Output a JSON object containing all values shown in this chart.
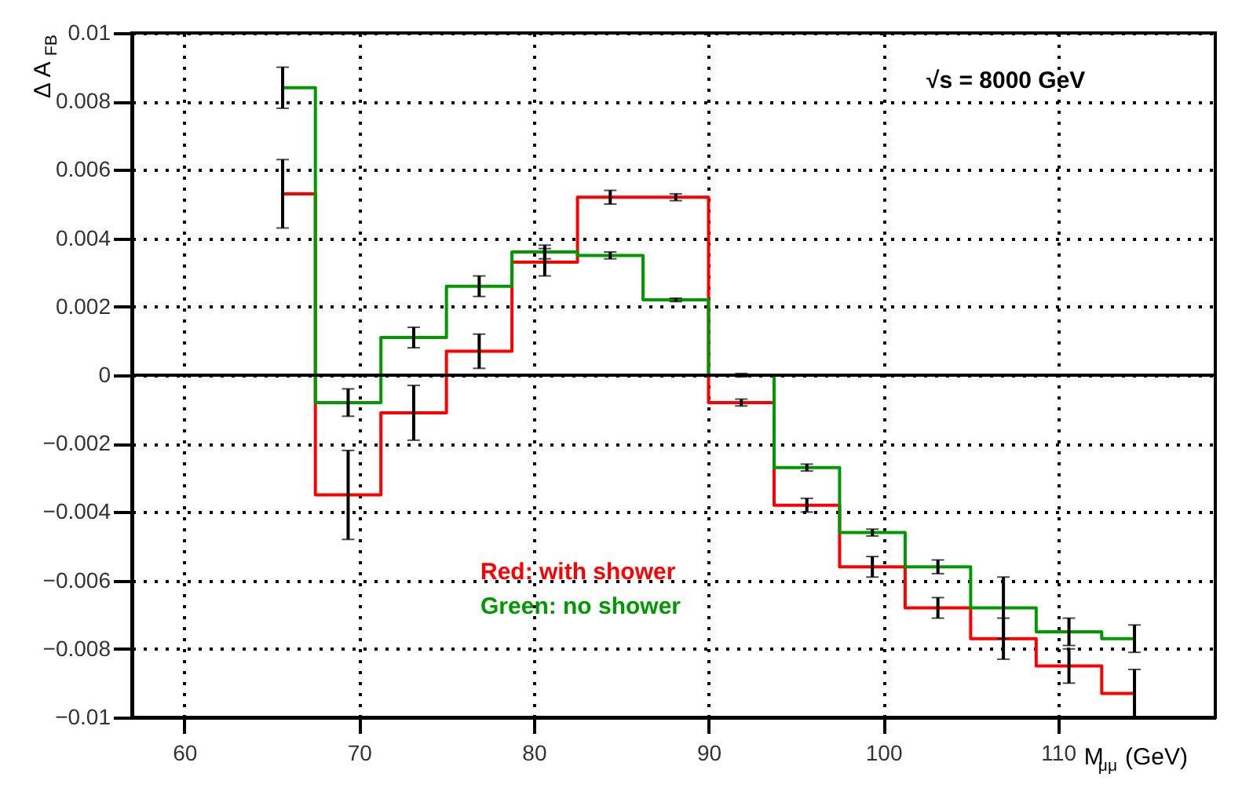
{
  "chart_data": {
    "type": "step",
    "xlabel": "M$_{μμ}$ (GeV)",
    "ylabel": "Δ A$_{FB}$",
    "x": [
      65.625,
      69.375,
      73.125,
      76.875,
      80.625,
      84.375,
      88.125,
      91.875,
      95.625,
      99.375,
      103.125,
      106.875,
      110.625,
      114.375
    ],
    "series": [
      {
        "name": "Red: with shower",
        "color": "#ff0000",
        "values": [
          0.0053,
          -0.0035,
          -0.0011,
          0.0007,
          0.0033,
          0.0052,
          0.0052,
          -0.0008,
          -0.0038,
          -0.0056,
          -0.0068,
          -0.0077,
          -0.0085,
          -0.0093
        ],
        "errors": [
          0.001,
          0.0013,
          0.0008,
          0.0005,
          0.0004,
          0.0002,
          0.0001,
          0.0001,
          0.0002,
          0.0003,
          0.0003,
          0.0006,
          0.0005,
          0.0007
        ]
      },
      {
        "name": "Green: no shower",
        "color": "#009900",
        "values": [
          0.0084,
          -0.0008,
          0.0011,
          0.0026,
          0.0036,
          0.0035,
          0.0022,
          0,
          -0.0027,
          -0.0046,
          -0.0056,
          -0.0068,
          -0.0075,
          -0.0077
        ],
        "errors": [
          0.0006,
          0.0004,
          0.0003,
          0.0003,
          0.0002,
          0.0001,
          5e-05,
          5e-05,
          0.0001,
          0.0001,
          0.0002,
          0.0009,
          0.0004,
          0.0004
        ]
      }
    ],
    "xlim": [
      57,
      119
    ],
    "xticks": [
      60,
      70,
      80,
      90,
      100,
      110
    ],
    "ylim": [
      -0.01,
      0.01
    ],
    "yticks": [
      -0.01,
      -0.008,
      -0.006,
      -0.004,
      -0.002,
      0,
      0.002,
      0.004,
      0.006,
      0.008,
      0.01
    ],
    "ref_lines": [
      {
        "axis": "y",
        "value": 0,
        "color": "#000000"
      }
    ],
    "annotations": [
      "√s = 8000 GeV"
    ],
    "grid": true,
    "legend": "bottom"
  }
}
